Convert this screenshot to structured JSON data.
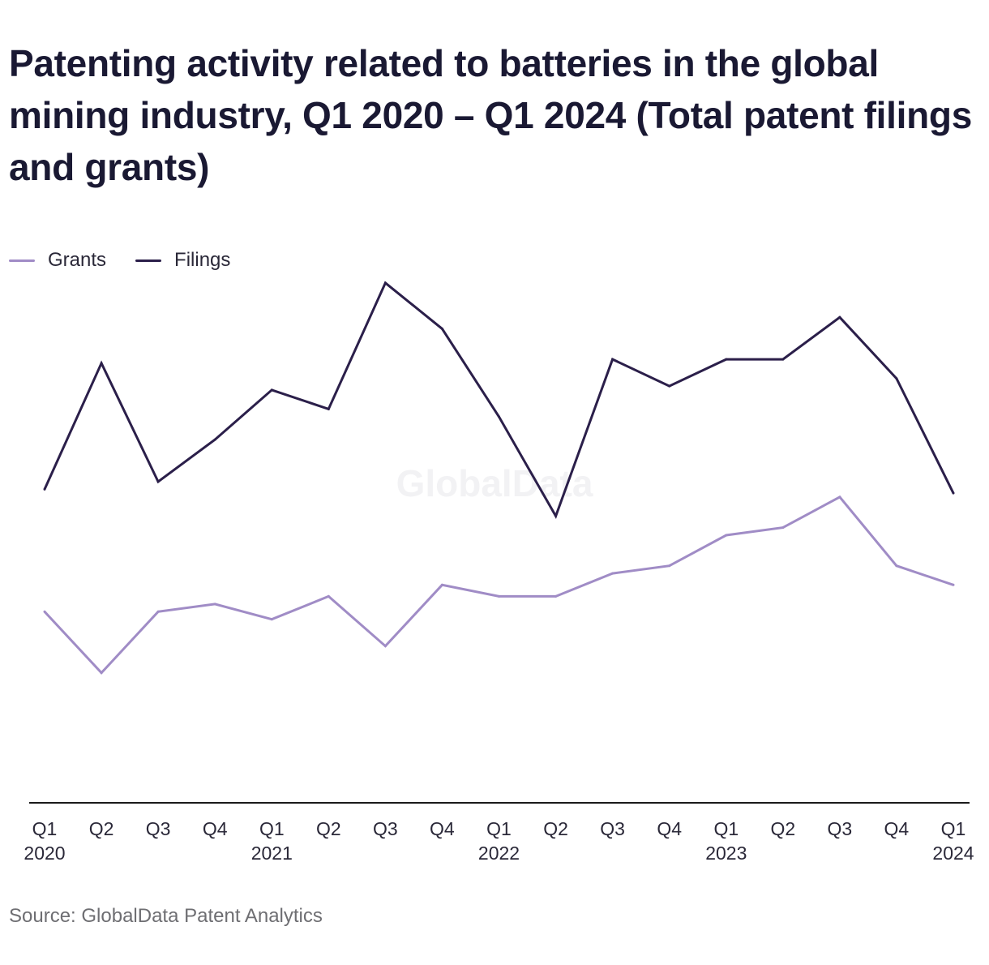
{
  "title": "Patenting activity related to batteries in the global mining industry, Q1 2020 – Q1 2024 (Total patent filings and grants)",
  "watermark": "GlobalData",
  "source": "Source: GlobalData Patent Analytics",
  "colors": {
    "grants": "#a08cc6",
    "filings": "#2b1f4a",
    "axis": "#1a1a1a"
  },
  "chart_data": {
    "type": "line",
    "title": "Patenting activity related to batteries in the global mining industry, Q1 2020 – Q1 2024 (Total patent filings and grants)",
    "xlabel": "",
    "ylabel": "",
    "ylim": [
      0,
      140
    ],
    "grid": false,
    "legend": "top-left",
    "categories": [
      {
        "q": "Q1",
        "year": "2020"
      },
      {
        "q": "Q2",
        "year": ""
      },
      {
        "q": "Q3",
        "year": ""
      },
      {
        "q": "Q4",
        "year": ""
      },
      {
        "q": "Q1",
        "year": "2021"
      },
      {
        "q": "Q2",
        "year": ""
      },
      {
        "q": "Q3",
        "year": ""
      },
      {
        "q": "Q4",
        "year": ""
      },
      {
        "q": "Q1",
        "year": "2022"
      },
      {
        "q": "Q2",
        "year": ""
      },
      {
        "q": "Q3",
        "year": ""
      },
      {
        "q": "Q4",
        "year": ""
      },
      {
        "q": "Q1",
        "year": "2023"
      },
      {
        "q": "Q2",
        "year": ""
      },
      {
        "q": "Q3",
        "year": ""
      },
      {
        "q": "Q4",
        "year": ""
      },
      {
        "q": "Q1",
        "year": "2024"
      }
    ],
    "series": [
      {
        "name": "Grants",
        "color": "#a08cc6",
        "values": [
          50,
          34,
          50,
          52,
          48,
          54,
          41,
          57,
          54,
          54,
          60,
          62,
          70,
          72,
          80,
          62,
          57
        ]
      },
      {
        "name": "Filings",
        "color": "#2b1f4a",
        "values": [
          82,
          115,
          84,
          95,
          108,
          103,
          136,
          124,
          101,
          75,
          116,
          109,
          116,
          116,
          127,
          111,
          81
        ]
      }
    ]
  }
}
